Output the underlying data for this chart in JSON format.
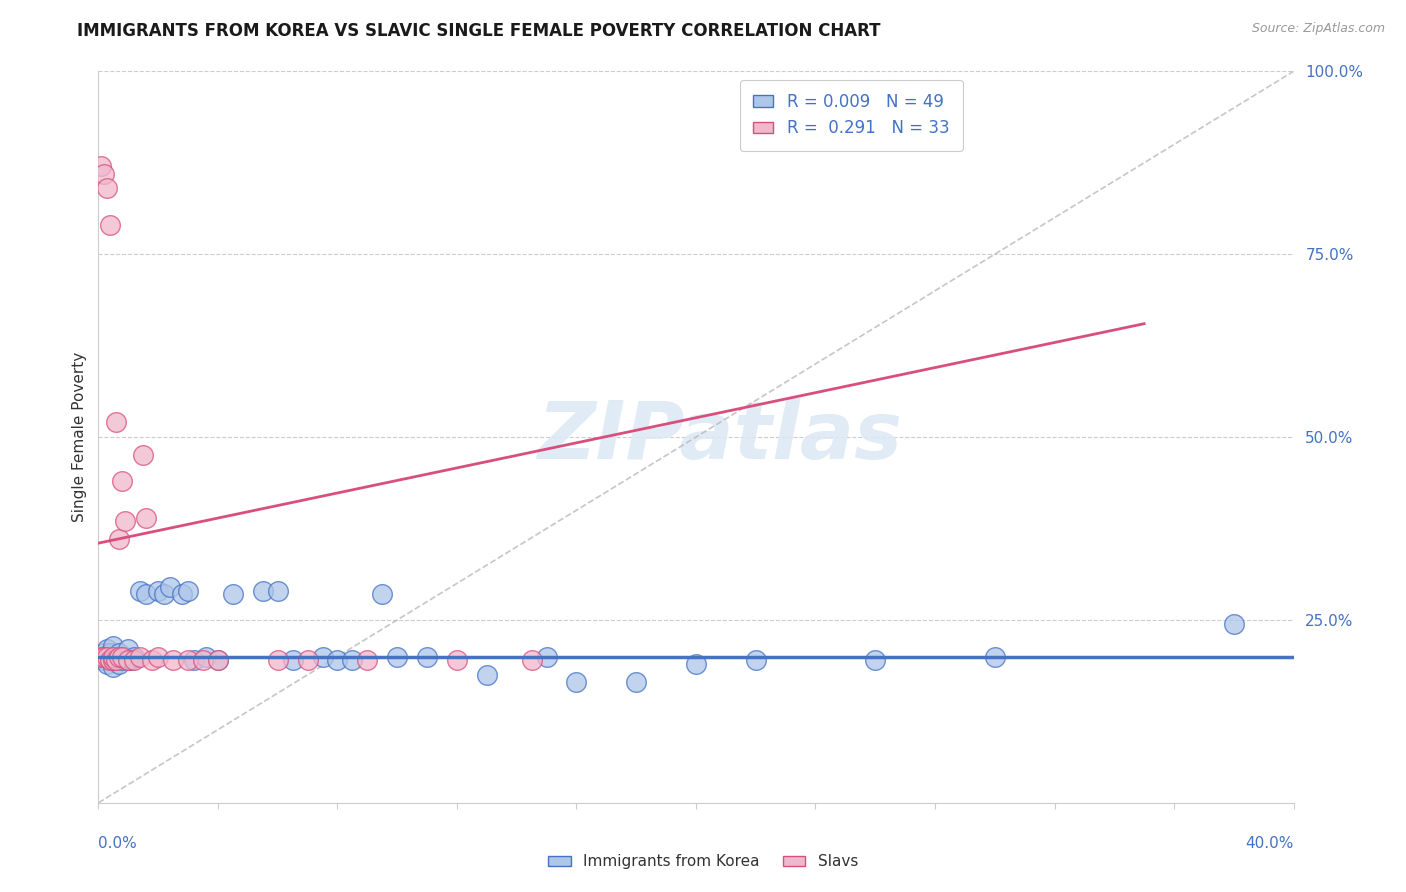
{
  "title": "IMMIGRANTS FROM KOREA VS SLAVIC SINGLE FEMALE POVERTY CORRELATION CHART",
  "source": "Source: ZipAtlas.com",
  "ylabel": "Single Female Poverty",
  "r_korea": 0.009,
  "n_korea": 49,
  "r_slavs": 0.291,
  "n_slavs": 33,
  "color_korea_fill": "#aec6e8",
  "color_slavs_fill": "#f0b8cc",
  "color_korea_edge": "#4472C4",
  "color_slavs_edge": "#d94f7c",
  "color_korea_line": "#4472C4",
  "color_slavs_line": "#d94f7c",
  "color_diagonal": "#b8b8b8",
  "xlim": [
    0.0,
    0.4
  ],
  "ylim": [
    0.0,
    1.0
  ],
  "watermark_text": "ZIPatlas",
  "korea_x": [
    0.001,
    0.002,
    0.002,
    0.003,
    0.003,
    0.004,
    0.004,
    0.005,
    0.005,
    0.006,
    0.006,
    0.007,
    0.007,
    0.008,
    0.008,
    0.009,
    0.01,
    0.01,
    0.011,
    0.012,
    0.014,
    0.016,
    0.02,
    0.022,
    0.024,
    0.028,
    0.03,
    0.032,
    0.036,
    0.04,
    0.045,
    0.055,
    0.06,
    0.065,
    0.075,
    0.08,
    0.085,
    0.095,
    0.1,
    0.11,
    0.13,
    0.15,
    0.16,
    0.18,
    0.2,
    0.22,
    0.26,
    0.3,
    0.38
  ],
  "korea_y": [
    0.2,
    0.195,
    0.205,
    0.19,
    0.21,
    0.195,
    0.205,
    0.185,
    0.215,
    0.195,
    0.2,
    0.19,
    0.205,
    0.2,
    0.195,
    0.2,
    0.195,
    0.21,
    0.195,
    0.2,
    0.29,
    0.285,
    0.29,
    0.285,
    0.295,
    0.285,
    0.29,
    0.195,
    0.2,
    0.195,
    0.285,
    0.29,
    0.29,
    0.195,
    0.2,
    0.195,
    0.195,
    0.285,
    0.2,
    0.2,
    0.175,
    0.2,
    0.165,
    0.165,
    0.19,
    0.195,
    0.195,
    0.2,
    0.245
  ],
  "slavs_x": [
    0.001,
    0.001,
    0.002,
    0.002,
    0.003,
    0.003,
    0.004,
    0.004,
    0.005,
    0.005,
    0.006,
    0.006,
    0.007,
    0.007,
    0.008,
    0.008,
    0.009,
    0.01,
    0.012,
    0.014,
    0.015,
    0.016,
    0.018,
    0.02,
    0.025,
    0.03,
    0.035,
    0.04,
    0.06,
    0.07,
    0.09,
    0.12,
    0.145
  ],
  "slavs_y": [
    0.87,
    0.2,
    0.86,
    0.2,
    0.84,
    0.2,
    0.195,
    0.79,
    0.195,
    0.2,
    0.195,
    0.52,
    0.36,
    0.2,
    0.2,
    0.44,
    0.385,
    0.195,
    0.195,
    0.2,
    0.475,
    0.39,
    0.195,
    0.2,
    0.195,
    0.195,
    0.195,
    0.195,
    0.195,
    0.195,
    0.195,
    0.195,
    0.195
  ],
  "slav_line_x0": 0.0,
  "slav_line_y0": 0.355,
  "slav_line_x1": 0.35,
  "slav_line_y1": 0.655,
  "korea_line_y": 0.2
}
